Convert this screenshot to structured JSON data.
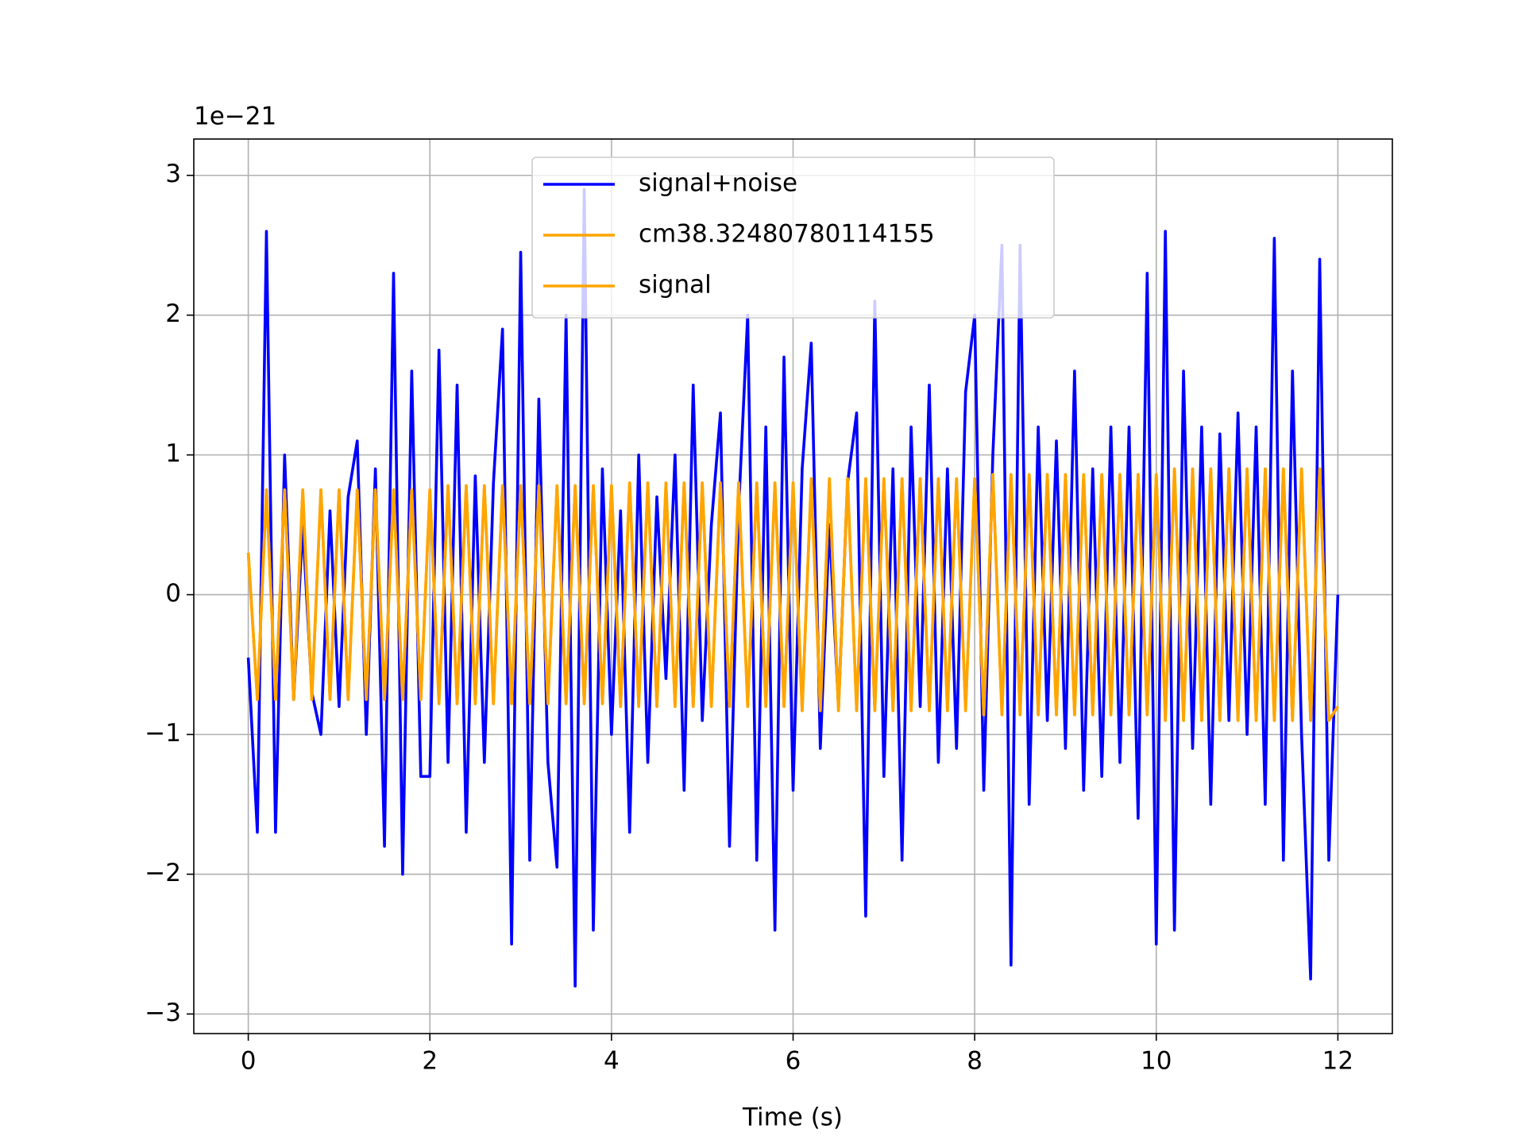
{
  "chart_data": {
    "type": "line",
    "xlabel": "Time (s)",
    "y_offset_text": "1e−21",
    "grid": true,
    "legend_position": "upper center",
    "xlim": [
      -0.6,
      12.6
    ],
    "ylim": [
      -3.14,
      3.26
    ],
    "xticks": [
      0,
      2,
      4,
      6,
      8,
      10,
      12
    ],
    "yticks": [
      {
        "value": -3,
        "label": "−3"
      },
      {
        "value": -2,
        "label": "−2"
      },
      {
        "value": -1,
        "label": "−1"
      },
      0,
      1,
      2,
      3
    ],
    "x": [
      0,
      0.1,
      0.2,
      0.3,
      0.4,
      0.5,
      0.6,
      0.7,
      0.8,
      0.9,
      1,
      1.1,
      1.2,
      1.3,
      1.4,
      1.5,
      1.6,
      1.7,
      1.8,
      1.9,
      2,
      2.1,
      2.2,
      2.3,
      2.4,
      2.5,
      2.6,
      2.7,
      2.8,
      2.9,
      3,
      3.1,
      3.2,
      3.3,
      3.4,
      3.5,
      3.6,
      3.7,
      3.8,
      3.9,
      4,
      4.1,
      4.2,
      4.3,
      4.4,
      4.5,
      4.6,
      4.7,
      4.8,
      4.9,
      5,
      5.1,
      5.2,
      5.3,
      5.4,
      5.5,
      5.6,
      5.7,
      5.8,
      5.9,
      6,
      6.1,
      6.2,
      6.3,
      6.4,
      6.5,
      6.6,
      6.7,
      6.8,
      6.9,
      7,
      7.1,
      7.2,
      7.3,
      7.4,
      7.5,
      7.6,
      7.7,
      7.8,
      7.9,
      8,
      8.1,
      8.2,
      8.3,
      8.4,
      8.5,
      8.6,
      8.7,
      8.8,
      8.9,
      9,
      9.1,
      9.2,
      9.3,
      9.4,
      9.5,
      9.6,
      9.7,
      9.8,
      9.9,
      10,
      10.1,
      10.2,
      10.3,
      10.4,
      10.5,
      10.6,
      10.7,
      10.8,
      10.9,
      11,
      11.1,
      11.2,
      11.3,
      11.4,
      11.5,
      11.6,
      11.7,
      11.8,
      11.9,
      12
    ],
    "series": [
      {
        "name": "signal+noise",
        "color": "#0000ff",
        "values": [
          -0.45,
          -1.7,
          2.6,
          -1.7,
          1.0,
          -0.75,
          0.5,
          -0.7,
          -1.0,
          0.6,
          -0.8,
          0.7,
          1.1,
          -1.0,
          0.9,
          -1.8,
          2.3,
          -2.0,
          1.6,
          -1.3,
          -1.3,
          1.75,
          -1.2,
          1.5,
          -1.7,
          0.85,
          -1.2,
          0.8,
          1.9,
          -2.5,
          2.45,
          -1.9,
          1.4,
          -1.2,
          -1.95,
          2.0,
          -2.8,
          2.9,
          -2.4,
          0.9,
          -1.0,
          0.6,
          -1.7,
          1.0,
          -1.2,
          0.7,
          -0.6,
          1.0,
          -1.4,
          1.5,
          -0.9,
          0.5,
          1.3,
          -1.8,
          0.6,
          2.0,
          -1.9,
          1.2,
          -2.4,
          1.7,
          -1.4,
          0.9,
          1.8,
          -1.1,
          0.5,
          -0.8,
          0.8,
          1.3,
          -2.3,
          2.1,
          -1.3,
          0.9,
          -1.9,
          1.2,
          -0.8,
          1.5,
          -1.2,
          0.9,
          -1.1,
          1.45,
          2.0,
          -1.4,
          1.0,
          2.5,
          -2.65,
          2.5,
          -1.5,
          1.2,
          -0.9,
          1.1,
          -1.1,
          1.6,
          -1.4,
          0.9,
          -1.3,
          1.2,
          -1.2,
          1.2,
          -1.6,
          2.3,
          -2.5,
          2.6,
          -2.4,
          1.6,
          -1.1,
          1.2,
          -1.5,
          1.15,
          -0.9,
          1.3,
          -1.0,
          1.2,
          -1.5,
          2.55,
          -1.9,
          1.6,
          -1.0,
          -2.75,
          2.4,
          -1.9,
          0.0
        ]
      },
      {
        "name": "cm38.32480780114155",
        "color": "#ffa500",
        "values": [
          0.3,
          -0.75,
          0.75,
          -0.75,
          0.75,
          -0.75,
          0.75,
          -0.75,
          0.75,
          -0.75,
          0.75,
          -0.75,
          0.75,
          -0.75,
          0.75,
          -0.75,
          0.75,
          -0.75,
          0.75,
          -0.75,
          0.75,
          -0.78,
          0.78,
          -0.78,
          0.78,
          -0.78,
          0.78,
          -0.78,
          0.78,
          -0.78,
          0.78,
          -0.78,
          0.78,
          -0.78,
          0.78,
          -0.78,
          0.78,
          -0.78,
          0.78,
          -0.78,
          0.78,
          -0.8,
          0.8,
          -0.8,
          0.8,
          -0.8,
          0.8,
          -0.8,
          0.8,
          -0.8,
          0.8,
          -0.8,
          0.8,
          -0.8,
          0.8,
          -0.8,
          0.8,
          -0.8,
          0.8,
          -0.8,
          0.8,
          -0.83,
          0.83,
          -0.83,
          0.83,
          -0.83,
          0.83,
          -0.83,
          0.83,
          -0.83,
          0.83,
          -0.83,
          0.83,
          -0.83,
          0.83,
          -0.83,
          0.83,
          -0.83,
          0.83,
          -0.83,
          0.83,
          -0.86,
          0.86,
          -0.86,
          0.86,
          -0.86,
          0.86,
          -0.86,
          0.86,
          -0.86,
          0.86,
          -0.86,
          0.86,
          -0.86,
          0.86,
          -0.86,
          0.86,
          -0.86,
          0.86,
          -0.86,
          0.86,
          -0.9,
          0.9,
          -0.9,
          0.9,
          -0.9,
          0.9,
          -0.9,
          0.9,
          -0.9,
          0.9,
          -0.9,
          0.9,
          -0.9,
          0.9,
          -0.9,
          0.9,
          -0.9,
          0.9,
          -0.9,
          -0.8
        ]
      },
      {
        "name": "signal",
        "color": "#ffa500",
        "values": [
          0.3,
          -0.75,
          0.75,
          -0.75,
          0.75,
          -0.75,
          0.75,
          -0.75,
          0.75,
          -0.75,
          0.75,
          -0.75,
          0.75,
          -0.75,
          0.75,
          -0.75,
          0.75,
          -0.75,
          0.75,
          -0.75,
          0.75,
          -0.78,
          0.78,
          -0.78,
          0.78,
          -0.78,
          0.78,
          -0.78,
          0.78,
          -0.78,
          0.78,
          -0.78,
          0.78,
          -0.78,
          0.78,
          -0.78,
          0.78,
          -0.78,
          0.78,
          -0.78,
          0.78,
          -0.8,
          0.8,
          -0.8,
          0.8,
          -0.8,
          0.8,
          -0.8,
          0.8,
          -0.8,
          0.8,
          -0.8,
          0.8,
          -0.8,
          0.8,
          -0.8,
          0.8,
          -0.8,
          0.8,
          -0.8,
          0.8,
          -0.83,
          0.83,
          -0.83,
          0.83,
          -0.83,
          0.83,
          -0.83,
          0.83,
          -0.83,
          0.83,
          -0.83,
          0.83,
          -0.83,
          0.83,
          -0.83,
          0.83,
          -0.83,
          0.83,
          -0.83,
          0.83,
          -0.86,
          0.86,
          -0.86,
          0.86,
          -0.86,
          0.86,
          -0.86,
          0.86,
          -0.86,
          0.86,
          -0.86,
          0.86,
          -0.86,
          0.86,
          -0.86,
          0.86,
          -0.86,
          0.86,
          -0.86,
          0.86,
          -0.9,
          0.9,
          -0.9,
          0.9,
          -0.9,
          0.9,
          -0.9,
          0.9,
          -0.9,
          0.9,
          -0.9,
          0.9,
          -0.9,
          0.9,
          -0.9,
          0.9,
          -0.9,
          0.9,
          -0.9,
          -0.8
        ]
      }
    ]
  }
}
